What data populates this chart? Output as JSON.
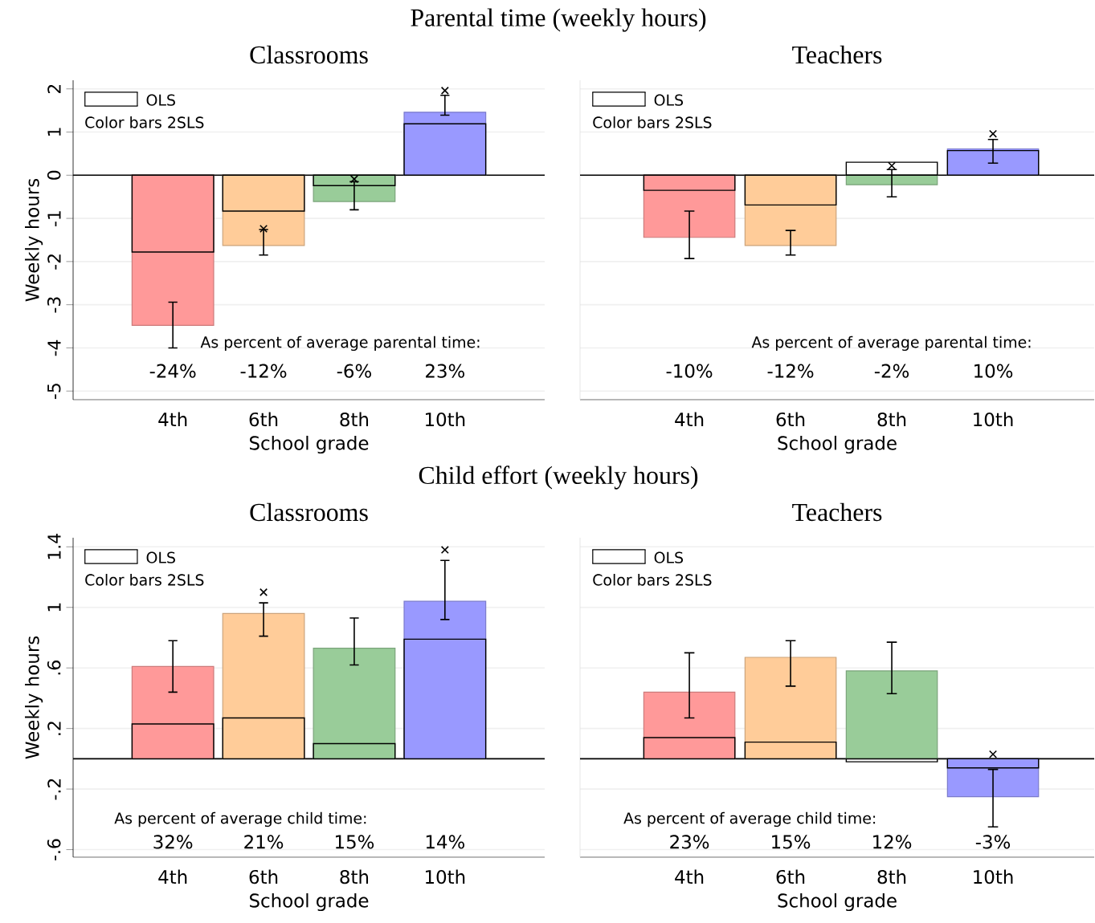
{
  "chart_data": [
    {
      "type": "bar",
      "title": "Parental time (weekly hours)",
      "subtitle": "Classrooms",
      "xlabel": "School grade",
      "ylabel": "Weekly hours",
      "categories": [
        "4th",
        "6th",
        "8th",
        "10th"
      ],
      "ylim": [
        -5.2,
        2.2
      ],
      "yticks": [
        -5,
        -4,
        -3,
        -2,
        -1,
        0,
        1,
        2
      ],
      "grid": "y",
      "legend": "top left",
      "ref_lines": [
        {
          "axis": "y",
          "value": 0,
          "color": "#000000"
        }
      ],
      "annotations": [
        "As percent of average parental time:",
        "-24%",
        "-12%",
        "-6%",
        "23%"
      ],
      "legend_title": "Color bars 2SLS",
      "series": [
        {
          "type": "bar",
          "colors": [
            "#ff9999",
            "#ffcc99",
            "#99cc99",
            "#9999ff"
          ],
          "values": [
            -3.48,
            -1.63,
            -0.61,
            1.46
          ],
          "errors": [
            [
              -4.0,
              -2.94
            ],
            [
              -1.85,
              -1.26
            ],
            [
              -0.8,
              -0.15
            ],
            [
              1.39,
              1.85
            ]
          ]
        },
        {
          "name": "OLS",
          "type": "bar",
          "color": "#000000",
          "values": [
            -1.78,
            -0.83,
            -0.24,
            1.19
          ]
        },
        {
          "type": "scatter",
          "marker": "cross",
          "color": "#000000",
          "values": [
            null,
            -1.24,
            -0.09,
            1.96
          ]
        }
      ]
    },
    {
      "type": "bar",
      "subtitle": "Teachers",
      "xlabel": "School grade",
      "categories": [
        "4th",
        "6th",
        "8th",
        "10th"
      ],
      "ylim": [
        -5.2,
        2.2
      ],
      "yticks": [
        -5,
        -4,
        -3,
        -2,
        -1,
        0,
        1,
        2
      ],
      "tick_labels": "x",
      "grid": "y",
      "legend": "top left",
      "ref_lines": [
        {
          "axis": "y",
          "value": 0,
          "color": "#000000"
        }
      ],
      "annotations": [
        "As percent of average parental time:",
        "-10%",
        "-12%",
        "-2%",
        "10%"
      ],
      "legend_title": "Color bars 2SLS",
      "series": [
        {
          "type": "bar",
          "colors": [
            "#ff9999",
            "#ffcc99",
            "#99cc99",
            "#9999ff"
          ],
          "values": [
            -1.44,
            -1.63,
            -0.22,
            0.61
          ],
          "errors": [
            [
              -1.93,
              -0.83
            ],
            [
              -1.85,
              -1.28
            ],
            [
              -0.5,
              0.13
            ],
            [
              0.28,
              0.83
            ]
          ]
        },
        {
          "name": "OLS",
          "type": "bar",
          "color": "#000000",
          "values": [
            -0.35,
            -0.69,
            0.3,
            0.57
          ]
        },
        {
          "type": "scatter",
          "marker": "cross",
          "color": "#000000",
          "values": [
            null,
            null,
            0.22,
            0.96
          ]
        }
      ]
    },
    {
      "type": "bar",
      "title": "Child effort (weekly hours)",
      "subtitle": "Classrooms",
      "xlabel": "School grade",
      "ylabel": "Weekly hours",
      "categories": [
        "4th",
        "6th",
        "8th",
        "10th"
      ],
      "ylim": [
        -0.65,
        1.46
      ],
      "yticks": [
        {
          "value": -0.6,
          "label": "-.6"
        },
        {
          "value": -0.2,
          "label": "-.2"
        },
        {
          "value": 0.2,
          "label": ".2"
        },
        {
          "value": 0.6,
          "label": ".6"
        },
        1,
        1.4
      ],
      "grid": "y",
      "legend": "top left",
      "ref_lines": [
        {
          "axis": "y",
          "value": 0,
          "color": "#000000"
        }
      ],
      "annotations": [
        "As percent of average child time:",
        "32%",
        "21%",
        "15%",
        "14%"
      ],
      "legend_title": "Color bars 2SLS",
      "series": [
        {
          "type": "bar",
          "colors": [
            "#ff9999",
            "#ffcc99",
            "#99cc99",
            "#9999ff"
          ],
          "values": [
            0.61,
            0.96,
            0.73,
            1.04
          ],
          "errors": [
            [
              0.44,
              0.78
            ],
            [
              0.81,
              1.03
            ],
            [
              0.62,
              0.93
            ],
            [
              0.92,
              1.31
            ]
          ]
        },
        {
          "name": "OLS",
          "type": "bar",
          "color": "#000000",
          "values": [
            0.23,
            0.27,
            0.1,
            0.79
          ]
        },
        {
          "type": "scatter",
          "marker": "cross",
          "color": "#000000",
          "values": [
            null,
            1.1,
            null,
            1.38
          ]
        }
      ]
    },
    {
      "type": "bar",
      "subtitle": "Teachers",
      "xlabel": "School grade",
      "categories": [
        "4th",
        "6th",
        "8th",
        "10th"
      ],
      "ylim": [
        -0.65,
        1.46
      ],
      "yticks": [
        {
          "value": -0.6,
          "label": null
        },
        {
          "value": -0.2,
          "label": null
        },
        {
          "value": 0.2,
          "label": null
        },
        {
          "value": 0.6,
          "label": null
        },
        {
          "value": 1,
          "label": null
        },
        {
          "value": 1.4,
          "label": null
        }
      ],
      "tick_labels": "x",
      "grid": "y",
      "legend": "top left",
      "ref_lines": [
        {
          "axis": "y",
          "value": 0,
          "color": "#000000"
        }
      ],
      "annotations": [
        "As percent of average child time:",
        "23%",
        "15%",
        "12%",
        "-3%"
      ],
      "legend_title": "Color bars 2SLS",
      "series": [
        {
          "type": "bar",
          "colors": [
            "#ff9999",
            "#ffcc99",
            "#99cc99",
            "#9999ff"
          ],
          "values": [
            0.44,
            0.67,
            0.58,
            -0.25
          ],
          "errors": [
            [
              0.27,
              0.7
            ],
            [
              0.48,
              0.78
            ],
            [
              0.43,
              0.77
            ],
            [
              -0.45,
              -0.07
            ]
          ]
        },
        {
          "name": "OLS",
          "type": "bar",
          "color": "#000000",
          "values": [
            0.14,
            0.11,
            -0.02,
            -0.06
          ]
        },
        {
          "type": "scatter",
          "marker": "cross",
          "color": "#000000",
          "values": [
            null,
            null,
            null,
            0.03
          ]
        }
      ]
    }
  ]
}
